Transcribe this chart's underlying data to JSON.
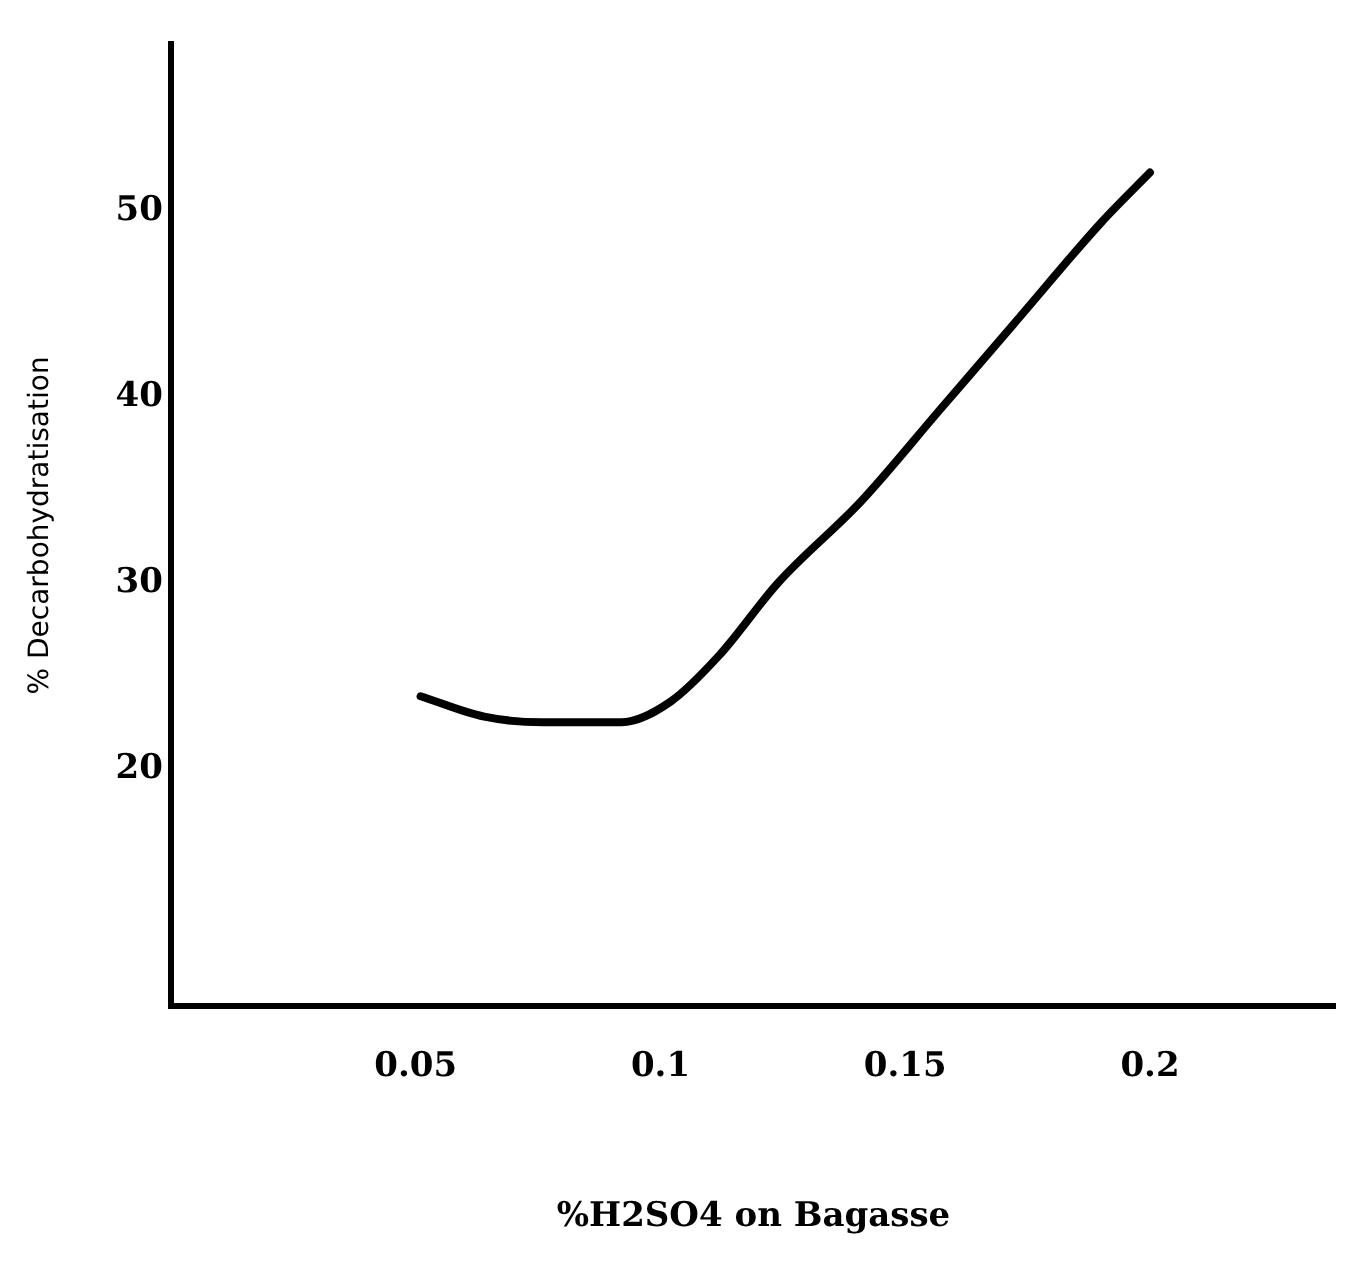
{
  "chart_data": {
    "type": "line",
    "xlabel": "%H2SO4 on Bagasse",
    "ylabel": "% Decarbohydratisation",
    "x": [
      0.051,
      0.064,
      0.076,
      0.092,
      0.102,
      0.112,
      0.124,
      0.141,
      0.157,
      0.173,
      0.19,
      0.2
    ],
    "series": [
      {
        "color": "#000000",
        "values": [
          23.9,
          22.8,
          22.5,
          22.5,
          23.6,
          26.1,
          30.0,
          34.4,
          39.3,
          44.2,
          49.4,
          52.1
        ]
      }
    ],
    "xlim": [
      0,
      0.238
    ],
    "xticks": [
      0.05,
      0.1,
      0.15,
      0.2
    ],
    "ylim": [
      7.2,
      59
    ],
    "yticks": [
      20,
      30,
      40,
      50
    ],
    "grid": false,
    "legend": false,
    "marker": "none",
    "line_style": "solid"
  }
}
